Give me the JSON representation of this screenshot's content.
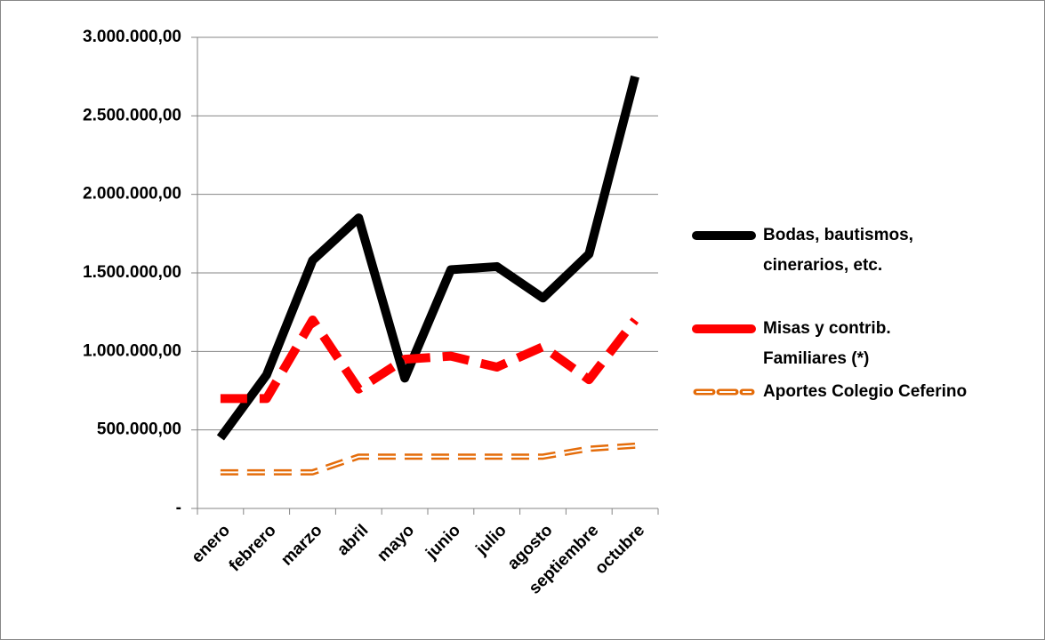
{
  "chart_data": {
    "type": "line",
    "categories": [
      "enero",
      "febrero",
      "marzo",
      "abril",
      "mayo",
      "junio",
      "julio",
      "agosto",
      "septiembre",
      "octubre"
    ],
    "series": [
      {
        "name": "Bodas, bautismos, cinerarios, etc.",
        "color": "#000000",
        "style": "solid",
        "values": [
          450000,
          850000,
          1580000,
          1850000,
          830000,
          1520000,
          1540000,
          1340000,
          1620000,
          2750000
        ]
      },
      {
        "name": "Misas y contrib. Familiares  (*)",
        "color": "#ff0000",
        "style": "dash",
        "values": [
          700000,
          700000,
          1200000,
          760000,
          950000,
          970000,
          900000,
          1030000,
          820000,
          1200000
        ]
      },
      {
        "name": "Aportes Colegio Ceferino",
        "color": "#e46c0a",
        "style": "double-dash",
        "values": [
          230000,
          230000,
          230000,
          330000,
          330000,
          330000,
          330000,
          330000,
          380000,
          400000
        ]
      }
    ],
    "ylim": [
      0,
      3000000
    ],
    "yticks": [
      {
        "value": 0,
        "label": "-"
      },
      {
        "value": 500000,
        "label": "500.000,00"
      },
      {
        "value": 1000000,
        "label": "1.000.000,00"
      },
      {
        "value": 1500000,
        "label": "1.500.000,00"
      },
      {
        "value": 2000000,
        "label": "2.000.000,00"
      },
      {
        "value": 2500000,
        "label": "2.500.000,00"
      },
      {
        "value": 3000000,
        "label": "3.000.000,00"
      }
    ],
    "grid": true,
    "legend": "right"
  }
}
